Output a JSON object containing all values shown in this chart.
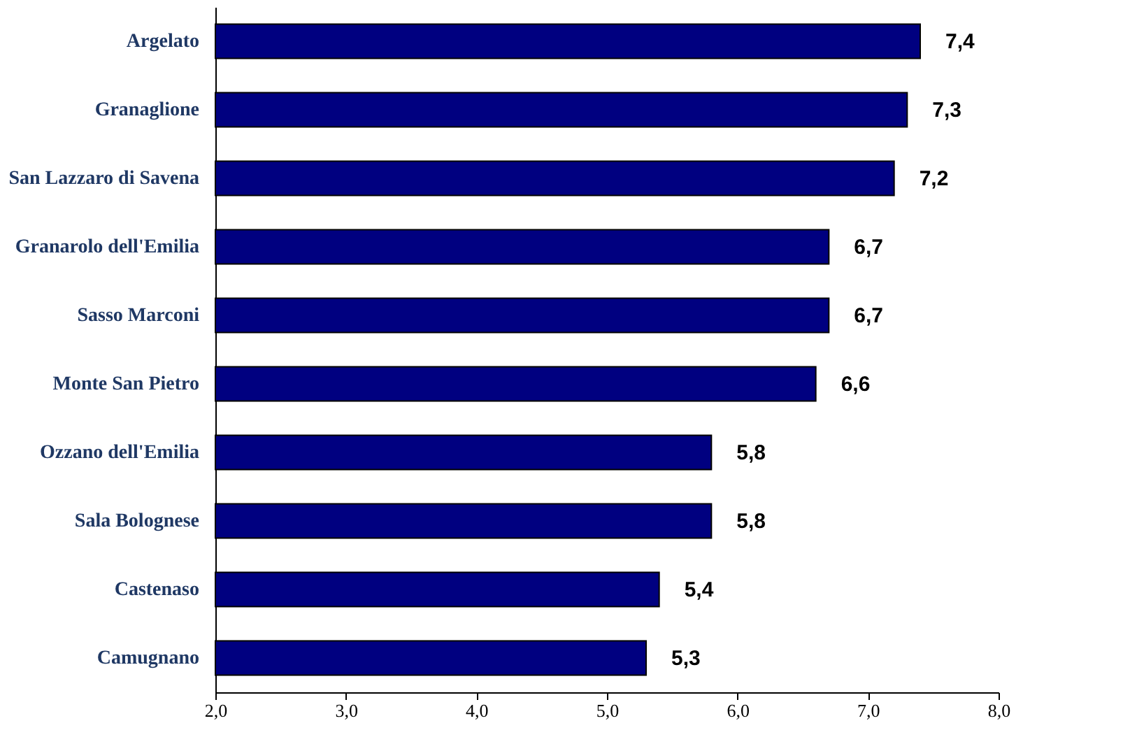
{
  "chart_data": {
    "type": "bar",
    "orientation": "horizontal",
    "categories": [
      "Argelato",
      "Granaglione",
      "San Lazzaro di Savena",
      "Granarolo dell'Emilia",
      "Sasso Marconi",
      "Monte San Pietro",
      "Ozzano dell'Emilia",
      "Sala Bolognese",
      "Castenaso",
      "Camugnano"
    ],
    "values": [
      7.4,
      7.3,
      7.2,
      6.7,
      6.7,
      6.6,
      5.8,
      5.8,
      5.4,
      5.3
    ],
    "value_labels": [
      "7,4",
      "7,3",
      "7,2",
      "6,7",
      "6,7",
      "6,6",
      "5,8",
      "5,8",
      "5,4",
      "5,3"
    ],
    "color": "#000080",
    "xlim": [
      2,
      8
    ],
    "xticks": [
      {
        "value": 2,
        "label": "2,0"
      },
      {
        "value": 3,
        "label": "3,0"
      },
      {
        "value": 4,
        "label": "4,0"
      },
      {
        "value": 5,
        "label": "5,0"
      },
      {
        "value": 6,
        "label": "6,0"
      },
      {
        "value": 7,
        "label": "7,0"
      },
      {
        "value": 8,
        "label": "8,0"
      }
    ],
    "grid": false
  }
}
